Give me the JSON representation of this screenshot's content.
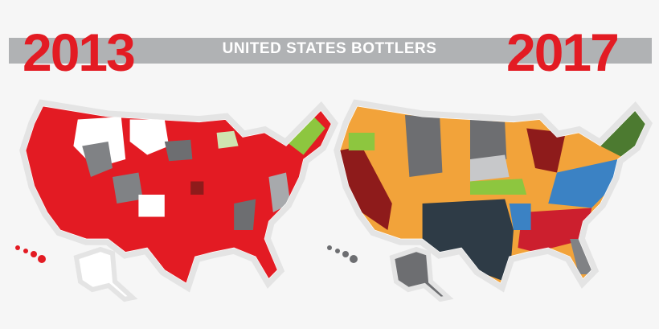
{
  "header": {
    "title": "UNITED STATES BOTTLERS",
    "year_left": "2013",
    "year_right": "2017"
  },
  "colors": {
    "red": "#e31b23",
    "gray": "#808285",
    "white": "#ffffff",
    "orange": "#f2a33a",
    "dark_gray": "#6d6e71",
    "navy": "#2e3b46",
    "blue": "#3b82c4",
    "dark_red": "#8e1b1b",
    "crimson": "#cc1f2e",
    "green": "#4c7a30",
    "light_green": "#8dc63f",
    "halo": "#e4e4e4"
  },
  "maps": [
    {
      "year": "2013",
      "dominant_color": "red"
    },
    {
      "year": "2017",
      "dominant_color": "multi"
    }
  ]
}
